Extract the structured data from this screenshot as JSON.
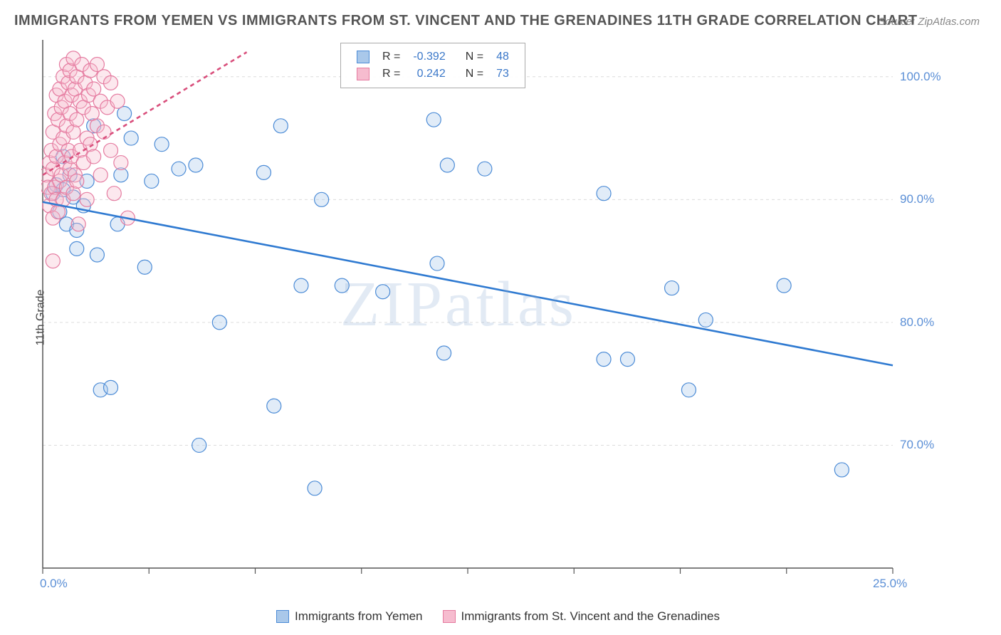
{
  "title": "IMMIGRANTS FROM YEMEN VS IMMIGRANTS FROM ST. VINCENT AND THE GRENADINES 11TH GRADE CORRELATION CHART",
  "source": "Source: ZipAtlas.com",
  "watermark": "ZIPatlas",
  "y_axis_label": "11th Grade",
  "chart": {
    "type": "scatter",
    "xlim": [
      0,
      25
    ],
    "ylim": [
      60,
      103
    ],
    "x_ticks": [
      0,
      3.125,
      6.25,
      9.375,
      12.5,
      15.625,
      18.75,
      21.875,
      25
    ],
    "x_tick_labels_shown": {
      "0": "0.0%",
      "25": "25.0%"
    },
    "y_ticks": [
      70,
      80,
      90,
      100
    ],
    "y_tick_labels": {
      "70": "70.0%",
      "80": "80.0%",
      "90": "90.0%",
      "100": "100.0%"
    },
    "grid_color": "#dcdcdc",
    "axis_color": "#555555",
    "background": "#ffffff",
    "marker_radius": 10,
    "marker_stroke_width": 1.2,
    "marker_fill_opacity": 0.35,
    "trend_line_width": 2.6,
    "series": [
      {
        "name": "Immigrants from Yemen",
        "color_stroke": "#4b8bd6",
        "color_fill": "#a9c8ea",
        "trend_color": "#2f7ad1",
        "trend_dash": "none",
        "trend": {
          "x1": 0,
          "y1": 89.8,
          "x2": 25,
          "y2": 76.5
        },
        "points": [
          [
            0.3,
            90.5
          ],
          [
            0.4,
            91.2
          ],
          [
            0.5,
            89.0
          ],
          [
            0.6,
            90.8
          ],
          [
            0.6,
            93.5
          ],
          [
            0.7,
            88.0
          ],
          [
            0.8,
            92.0
          ],
          [
            0.9,
            90.2
          ],
          [
            1.0,
            87.5
          ],
          [
            1.0,
            86.0
          ],
          [
            1.2,
            89.5
          ],
          [
            1.3,
            91.5
          ],
          [
            1.5,
            96.0
          ],
          [
            1.6,
            85.5
          ],
          [
            1.7,
            74.5
          ],
          [
            2.0,
            74.7
          ],
          [
            2.2,
            88.0
          ],
          [
            2.3,
            92.0
          ],
          [
            2.4,
            97.0
          ],
          [
            2.6,
            95.0
          ],
          [
            3.0,
            84.5
          ],
          [
            3.2,
            91.5
          ],
          [
            3.5,
            94.5
          ],
          [
            4.0,
            92.5
          ],
          [
            4.5,
            92.8
          ],
          [
            4.6,
            70.0
          ],
          [
            5.2,
            80.0
          ],
          [
            6.5,
            92.2
          ],
          [
            6.8,
            73.2
          ],
          [
            7.0,
            96.0
          ],
          [
            7.6,
            83.0
          ],
          [
            8.0,
            66.5
          ],
          [
            8.2,
            90.0
          ],
          [
            8.8,
            83.0
          ],
          [
            10.0,
            82.5
          ],
          [
            11.5,
            96.5
          ],
          [
            11.6,
            84.8
          ],
          [
            11.8,
            77.5
          ],
          [
            11.9,
            92.8
          ],
          [
            13.0,
            92.5
          ],
          [
            16.5,
            77.0
          ],
          [
            17.2,
            77.0
          ],
          [
            18.5,
            82.8
          ],
          [
            19.0,
            74.5
          ],
          [
            19.5,
            80.2
          ],
          [
            21.8,
            83.0
          ],
          [
            23.5,
            68.0
          ],
          [
            16.5,
            90.5
          ]
        ]
      },
      {
        "name": "Immigrants from St. Vincent and the Grenadines",
        "color_stroke": "#e57ba0",
        "color_fill": "#f6bccf",
        "trend_color": "#d94f7c",
        "trend_dash": "6,5",
        "trend": {
          "x1": 0,
          "y1": 92.0,
          "x2": 6,
          "y2": 102.0
        },
        "points": [
          [
            0.1,
            92.0
          ],
          [
            0.15,
            91.0
          ],
          [
            0.2,
            93.0
          ],
          [
            0.2,
            89.5
          ],
          [
            0.25,
            94.0
          ],
          [
            0.25,
            90.5
          ],
          [
            0.3,
            95.5
          ],
          [
            0.3,
            92.5
          ],
          [
            0.3,
            88.5
          ],
          [
            0.35,
            97.0
          ],
          [
            0.35,
            91.0
          ],
          [
            0.4,
            98.5
          ],
          [
            0.4,
            93.5
          ],
          [
            0.4,
            90.0
          ],
          [
            0.45,
            96.5
          ],
          [
            0.45,
            89.0
          ],
          [
            0.5,
            99.0
          ],
          [
            0.5,
            94.5
          ],
          [
            0.5,
            91.5
          ],
          [
            0.55,
            97.5
          ],
          [
            0.55,
            92.0
          ],
          [
            0.6,
            100.0
          ],
          [
            0.6,
            95.0
          ],
          [
            0.6,
            90.0
          ],
          [
            0.65,
            98.0
          ],
          [
            0.65,
            93.0
          ],
          [
            0.7,
            101.0
          ],
          [
            0.7,
            96.0
          ],
          [
            0.7,
            91.0
          ],
          [
            0.75,
            99.5
          ],
          [
            0.75,
            94.0
          ],
          [
            0.8,
            100.5
          ],
          [
            0.8,
            97.0
          ],
          [
            0.8,
            92.5
          ],
          [
            0.85,
            98.5
          ],
          [
            0.85,
            93.5
          ],
          [
            0.9,
            101.5
          ],
          [
            0.9,
            95.5
          ],
          [
            0.9,
            90.5
          ],
          [
            0.95,
            99.0
          ],
          [
            0.95,
            92.0
          ],
          [
            1.0,
            100.0
          ],
          [
            1.0,
            96.5
          ],
          [
            1.0,
            91.5
          ],
          [
            1.1,
            98.0
          ],
          [
            1.1,
            94.0
          ],
          [
            1.15,
            101.0
          ],
          [
            1.2,
            97.5
          ],
          [
            1.2,
            93.0
          ],
          [
            1.25,
            99.5
          ],
          [
            1.3,
            95.0
          ],
          [
            1.3,
            90.0
          ],
          [
            1.35,
            98.5
          ],
          [
            1.4,
            100.5
          ],
          [
            1.4,
            94.5
          ],
          [
            1.45,
            97.0
          ],
          [
            1.5,
            99.0
          ],
          [
            1.5,
            93.5
          ],
          [
            1.6,
            101.0
          ],
          [
            1.6,
            96.0
          ],
          [
            1.7,
            98.0
          ],
          [
            1.7,
            92.0
          ],
          [
            1.8,
            100.0
          ],
          [
            1.8,
            95.5
          ],
          [
            1.9,
            97.5
          ],
          [
            2.0,
            99.5
          ],
          [
            2.0,
            94.0
          ],
          [
            2.1,
            90.5
          ],
          [
            2.2,
            98.0
          ],
          [
            2.3,
            93.0
          ],
          [
            2.5,
            88.5
          ],
          [
            1.05,
            88.0
          ],
          [
            0.3,
            85.0
          ]
        ]
      }
    ]
  },
  "legend_top": {
    "rows": [
      {
        "swatch_fill": "#a9c8ea",
        "swatch_stroke": "#4b8bd6",
        "r_label": "R =",
        "r_value": "-0.392",
        "n_label": "N =",
        "n_value": "48"
      },
      {
        "swatch_fill": "#f6bccf",
        "swatch_stroke": "#e57ba0",
        "r_label": "R =",
        "r_value": "0.242",
        "n_label": "N =",
        "n_value": "73"
      }
    ],
    "r_label_color": "#333333",
    "value_color": "#3b78c9"
  },
  "legend_bottom": {
    "items": [
      {
        "swatch_fill": "#a9c8ea",
        "swatch_stroke": "#4b8bd6",
        "label": "Immigrants from Yemen"
      },
      {
        "swatch_fill": "#f6bccf",
        "swatch_stroke": "#e57ba0",
        "label": "Immigrants from St. Vincent and the Grenadines"
      }
    ]
  }
}
